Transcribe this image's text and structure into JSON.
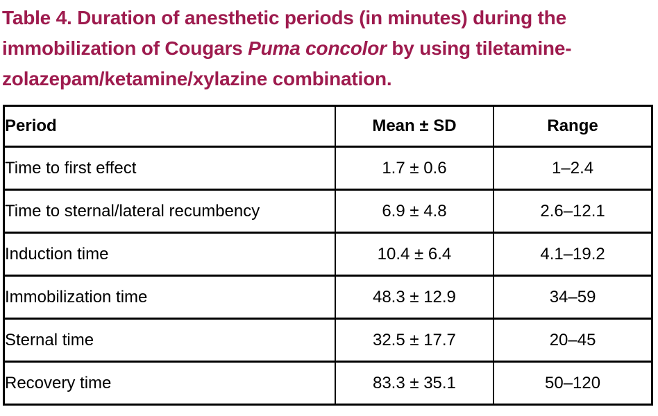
{
  "caption": {
    "line1": "Table 4. Duration of anesthetic periods (in minutes) during the",
    "line2_prefix": "immobilization of Cougars ",
    "line2_species_italic": "Puma concolor",
    "line2_suffix": " by using tiletamine-",
    "line3": "zolazepam/ketamine/xylazine combination.",
    "color": "#9e1b4e"
  },
  "table": {
    "columns": {
      "period": "Period",
      "mean_sd": "Mean ± SD",
      "range": "Range"
    },
    "border_color": "#000000",
    "rows": [
      {
        "period": "Time to first effect",
        "mean_sd": "1.7 ± 0.6",
        "range": "1–2.4"
      },
      {
        "period": "Time to sternal/lateral recumbency",
        "mean_sd": "6.9 ± 4.8",
        "range": "2.6–12.1"
      },
      {
        "period": "Induction time",
        "mean_sd": "10.4 ± 6.4",
        "range": "4.1–19.2"
      },
      {
        "period": "Immobilization time",
        "mean_sd": "48.3 ± 12.9",
        "range": "34–59"
      },
      {
        "period": "Sternal time",
        "mean_sd": "32.5 ± 17.7",
        "range": "20–45"
      },
      {
        "period": "Recovery time",
        "mean_sd": "83.3 ± 35.1",
        "range": "50–120"
      }
    ]
  }
}
